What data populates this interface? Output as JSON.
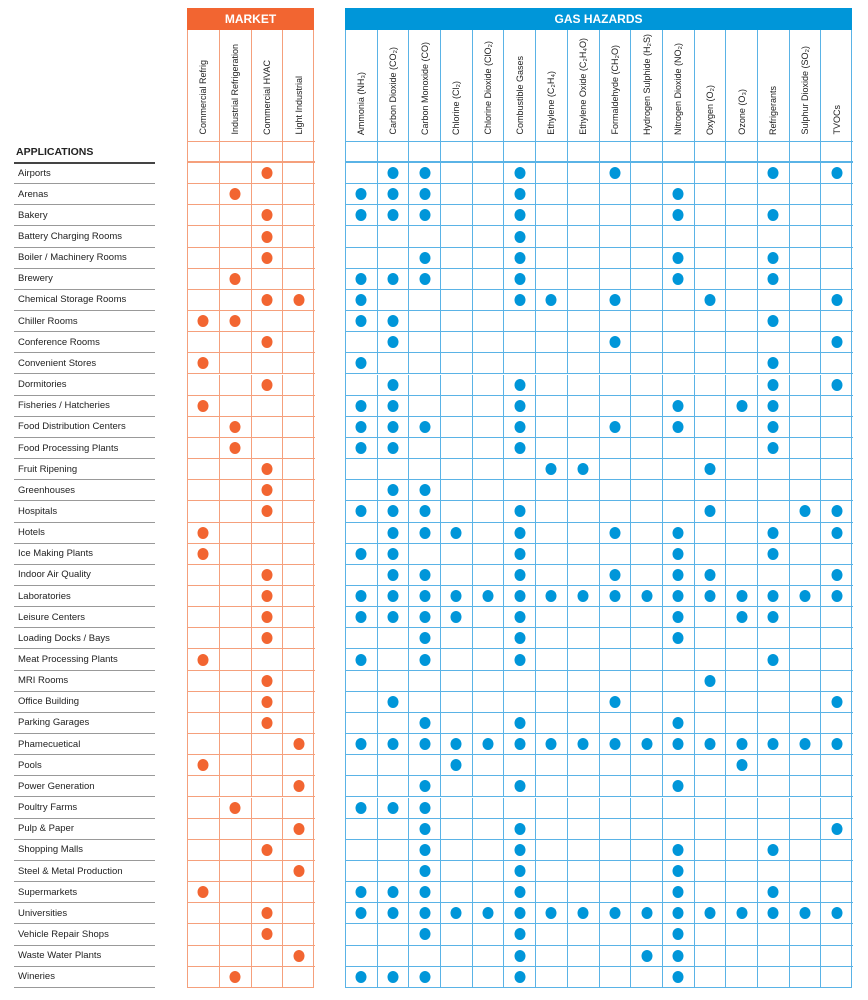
{
  "chart_data": {
    "type": "table",
    "market_title": "MARKET",
    "gas_title": "GAS HAZARDS",
    "applications_title": "APPLICATIONS",
    "market_columns": [
      "Commercial Refrig",
      "Industrial Refrigeration",
      "Commercial HVAC",
      "Light Industrial"
    ],
    "gas_columns": [
      "Ammonia (NH₃)",
      "Carbon Dioxide (CO₂)",
      "Carbon Monoxide (CO)",
      "Chlorine (Cl₂)",
      "Chlorine Dioxide (ClO₂)",
      "Combustible Gases",
      "Ethylene (C₂H₄)",
      "Ethylene Oxide (C₂H₄O)",
      "Formaldehyde (CH₂O)",
      "Hydrogen Sulphide (H₂S)",
      "Nitrogen Dioxide (NO₂)",
      "Oxygen (O₂)",
      "Ozone (O₃)",
      "Refrigerants",
      "Sulphur Dioxide (SO₂)",
      "TVOCs"
    ],
    "colors": {
      "market": "#F26531",
      "market_grid": "#F5A07C",
      "gas": "#0096D9",
      "gas_grid": "#5AB3E6"
    },
    "rows": [
      {
        "application": "Airports",
        "market": [
          2
        ],
        "gas": [
          1,
          2,
          5,
          8,
          13,
          15
        ]
      },
      {
        "application": "Arenas",
        "market": [
          1
        ],
        "gas": [
          0,
          1,
          2,
          5,
          10
        ]
      },
      {
        "application": "Bakery",
        "market": [
          2
        ],
        "gas": [
          0,
          1,
          2,
          5,
          10,
          13
        ]
      },
      {
        "application": "Battery Charging Rooms",
        "market": [
          2
        ],
        "gas": [
          5
        ]
      },
      {
        "application": "Boiler / Machinery Rooms",
        "market": [
          2
        ],
        "gas": [
          2,
          5,
          10,
          13
        ]
      },
      {
        "application": "Brewery",
        "market": [
          1
        ],
        "gas": [
          0,
          1,
          2,
          5,
          10,
          13
        ]
      },
      {
        "application": "Chemical Storage Rooms",
        "market": [
          2,
          3
        ],
        "gas": [
          0,
          5,
          6,
          8,
          11,
          15
        ]
      },
      {
        "application": "Chiller Rooms",
        "market": [
          0,
          1
        ],
        "gas": [
          0,
          1,
          13
        ]
      },
      {
        "application": "Conference Rooms",
        "market": [
          2
        ],
        "gas": [
          1,
          8,
          15
        ]
      },
      {
        "application": "Convenient Stores",
        "market": [
          0
        ],
        "gas": [
          0,
          13
        ]
      },
      {
        "application": "Dormitories",
        "market": [
          2
        ],
        "gas": [
          1,
          5,
          13,
          15
        ]
      },
      {
        "application": "Fisheries / Hatcheries",
        "market": [
          0
        ],
        "gas": [
          0,
          1,
          5,
          10,
          12,
          13
        ]
      },
      {
        "application": "Food Distribution Centers",
        "market": [
          1
        ],
        "gas": [
          0,
          1,
          2,
          5,
          8,
          10,
          13
        ]
      },
      {
        "application": "Food Processing Plants",
        "market": [
          1
        ],
        "gas": [
          0,
          1,
          5,
          13
        ]
      },
      {
        "application": "Fruit Ripening",
        "market": [
          2
        ],
        "gas": [
          6,
          7,
          11
        ]
      },
      {
        "application": "Greenhouses",
        "market": [
          2
        ],
        "gas": [
          1,
          2
        ]
      },
      {
        "application": "Hospitals",
        "market": [
          2
        ],
        "gas": [
          0,
          1,
          2,
          5,
          11,
          14,
          15
        ]
      },
      {
        "application": "Hotels",
        "market": [
          0
        ],
        "gas": [
          1,
          2,
          3,
          5,
          8,
          10,
          13,
          15
        ]
      },
      {
        "application": "Ice Making Plants",
        "market": [
          0
        ],
        "gas": [
          0,
          1,
          5,
          10,
          13
        ]
      },
      {
        "application": "Indoor Air Quality",
        "market": [
          2
        ],
        "gas": [
          1,
          2,
          5,
          8,
          10,
          11,
          15
        ]
      },
      {
        "application": "Laboratories",
        "market": [
          2
        ],
        "gas": [
          0,
          1,
          2,
          3,
          4,
          5,
          6,
          7,
          8,
          9,
          10,
          11,
          12,
          13,
          14,
          15
        ]
      },
      {
        "application": "Leisure Centers",
        "market": [
          2
        ],
        "gas": [
          0,
          1,
          2,
          3,
          5,
          10,
          12,
          13
        ]
      },
      {
        "application": "Loading Docks  / Bays",
        "market": [
          2
        ],
        "gas": [
          2,
          5,
          10
        ]
      },
      {
        "application": "Meat Processing Plants",
        "market": [
          0
        ],
        "gas": [
          0,
          2,
          5,
          13
        ]
      },
      {
        "application": "MRI Rooms",
        "market": [
          2
        ],
        "gas": [
          11
        ]
      },
      {
        "application": "Office Building",
        "market": [
          2
        ],
        "gas": [
          1,
          8,
          15
        ]
      },
      {
        "application": "Parking Garages",
        "market": [
          2
        ],
        "gas": [
          2,
          5,
          10
        ]
      },
      {
        "application": "Phamecuetical",
        "market": [
          3
        ],
        "gas": [
          0,
          1,
          2,
          3,
          4,
          5,
          6,
          7,
          8,
          9,
          10,
          11,
          12,
          13,
          14,
          15
        ]
      },
      {
        "application": "Pools",
        "market": [
          0
        ],
        "gas": [
          3,
          12
        ]
      },
      {
        "application": "Power Generation",
        "market": [
          3
        ],
        "gas": [
          2,
          5,
          10
        ]
      },
      {
        "application": "Poultry Farms",
        "market": [
          1
        ],
        "gas": [
          0,
          1,
          2
        ]
      },
      {
        "application": "Pulp & Paper",
        "market": [
          3
        ],
        "gas": [
          2,
          5,
          15
        ]
      },
      {
        "application": "Shopping Malls",
        "market": [
          2
        ],
        "gas": [
          2,
          5,
          10,
          13
        ]
      },
      {
        "application": "Steel & Metal Production",
        "market": [
          3
        ],
        "gas": [
          2,
          5,
          10
        ]
      },
      {
        "application": "Supermarkets",
        "market": [
          0
        ],
        "gas": [
          0,
          1,
          2,
          5,
          10,
          13
        ]
      },
      {
        "application": "Universities",
        "market": [
          2
        ],
        "gas": [
          0,
          1,
          2,
          3,
          4,
          5,
          6,
          7,
          8,
          9,
          10,
          11,
          12,
          13,
          14,
          15
        ]
      },
      {
        "application": "Vehicle Repair Shops",
        "market": [
          2
        ],
        "gas": [
          2,
          5,
          10
        ]
      },
      {
        "application": "Waste Water Plants",
        "market": [
          3
        ],
        "gas": [
          5,
          9,
          10
        ]
      },
      {
        "application": "Wineries",
        "market": [
          1
        ],
        "gas": [
          0,
          1,
          2,
          5,
          10
        ]
      }
    ]
  }
}
